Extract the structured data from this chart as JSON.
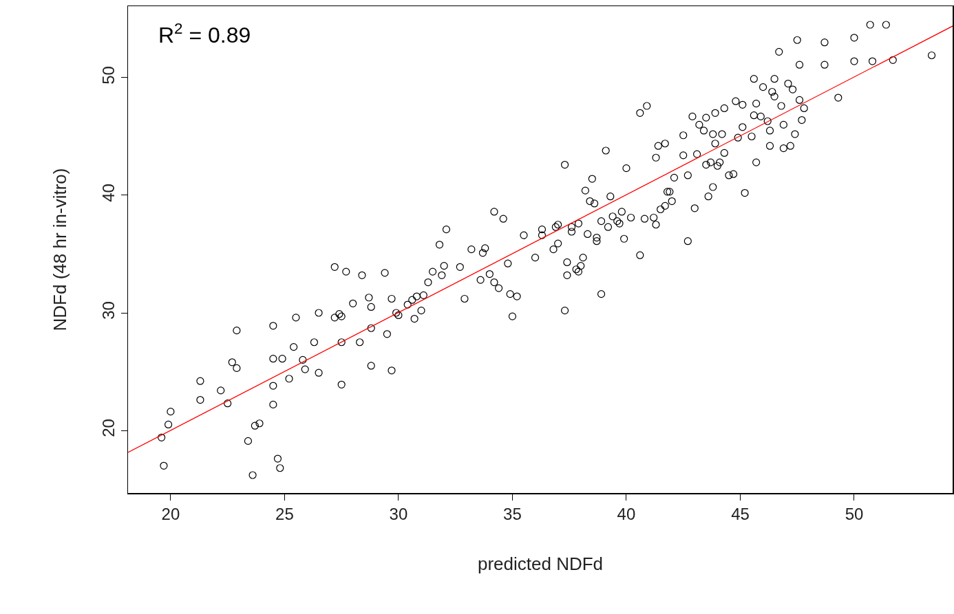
{
  "chart_data": {
    "type": "scatter",
    "xlabel": "predicted NDFd",
    "ylabel": "NDFd (48 hr in-vitro)",
    "annotations": [
      "R$^{2}$ = 0.89"
    ],
    "xlim": [
      18.13,
      54.32
    ],
    "ylim": [
      14.68,
      56.08
    ],
    "xticks": [
      20,
      25,
      30,
      35,
      40,
      45,
      50
    ],
    "yticks": [
      20,
      30,
      40,
      50
    ],
    "legend": false,
    "grid": false,
    "series": [
      {
        "color": "#000000",
        "marker": "circle",
        "x": [
          19.6,
          19.7,
          19.9,
          20.0,
          21.3,
          21.3,
          22.2,
          22.5,
          22.7,
          22.9,
          22.9,
          23.4,
          23.6,
          23.7,
          23.9,
          24.5,
          24.5,
          24.5,
          24.5,
          24.7,
          24.8,
          24.9,
          25.2,
          25.4,
          25.5,
          25.8,
          25.9,
          26.3,
          26.5,
          26.5,
          27.2,
          27.2,
          27.4,
          27.5,
          27.5,
          27.5,
          27.7,
          28.0,
          28.3,
          28.4,
          28.7,
          28.8,
          28.8,
          28.8,
          29.4,
          29.5,
          29.7,
          29.7,
          29.9,
          30.0,
          30.4,
          30.6,
          30.7,
          30.8,
          31.0,
          31.1,
          31.3,
          31.5,
          31.8,
          31.9,
          32.0,
          32.1,
          32.7,
          32.9,
          33.2,
          33.6,
          33.7,
          33.8,
          34.0,
          34.2,
          34.2,
          34.4,
          34.6,
          34.8,
          34.9,
          35.0,
          35.2,
          35.5,
          36.0,
          36.3,
          36.3,
          36.8,
          36.9,
          37.0,
          37.0,
          37.3,
          37.3,
          37.4,
          37.4,
          37.6,
          37.6,
          37.8,
          37.9,
          37.9,
          38.0,
          38.1,
          38.2,
          38.3,
          38.4,
          38.5,
          38.6,
          38.7,
          38.7,
          38.9,
          38.9,
          39.1,
          39.2,
          39.3,
          39.4,
          39.6,
          39.7,
          39.8,
          39.9,
          40.0,
          40.2,
          40.6,
          40.6,
          40.8,
          40.9,
          41.2,
          41.3,
          41.3,
          41.4,
          41.5,
          41.7,
          41.7,
          41.8,
          41.9,
          42.0,
          42.1,
          42.5,
          42.5,
          42.7,
          42.7,
          42.9,
          43.0,
          43.1,
          43.2,
          43.4,
          43.5,
          43.5,
          43.6,
          43.7,
          43.8,
          43.8,
          43.9,
          43.9,
          44.0,
          44.1,
          44.2,
          44.3,
          44.3,
          44.5,
          44.7,
          44.8,
          44.9,
          45.1,
          45.1,
          45.2,
          45.5,
          45.6,
          45.6,
          45.7,
          45.7,
          45.9,
          46.0,
          46.2,
          46.3,
          46.3,
          46.4,
          46.5,
          46.5,
          46.7,
          46.8,
          46.9,
          46.9,
          47.1,
          47.2,
          47.3,
          47.4,
          47.5,
          47.6,
          47.6,
          47.7,
          47.8,
          48.7,
          48.7,
          49.3,
          50.0,
          50.0,
          50.7,
          50.8,
          51.4,
          51.7,
          53.4
        ],
        "values": [
          19.4,
          17.0,
          20.5,
          21.6,
          24.2,
          22.6,
          23.4,
          22.3,
          25.8,
          25.3,
          28.5,
          19.1,
          16.2,
          20.4,
          20.6,
          28.9,
          26.1,
          23.8,
          22.2,
          17.6,
          16.8,
          26.1,
          24.4,
          27.1,
          29.6,
          26.0,
          25.2,
          27.5,
          30.0,
          24.9,
          33.9,
          29.6,
          29.9,
          29.7,
          23.9,
          27.5,
          33.5,
          30.8,
          27.5,
          33.2,
          31.3,
          25.5,
          30.5,
          28.7,
          33.4,
          28.2,
          25.1,
          31.2,
          30.0,
          29.8,
          30.7,
          31.1,
          29.5,
          31.4,
          30.2,
          31.5,
          32.6,
          33.5,
          35.8,
          33.2,
          34.0,
          37.1,
          33.9,
          31.2,
          35.4,
          32.8,
          35.1,
          35.5,
          33.3,
          38.6,
          32.6,
          32.1,
          38.0,
          34.2,
          31.6,
          29.7,
          31.4,
          36.6,
          34.7,
          37.1,
          36.6,
          35.4,
          37.3,
          37.5,
          35.9,
          30.2,
          42.6,
          34.3,
          33.2,
          37.3,
          36.9,
          33.7,
          33.5,
          37.6,
          34.0,
          34.7,
          40.4,
          36.7,
          39.5,
          41.4,
          39.3,
          36.4,
          36.1,
          31.6,
          37.8,
          43.8,
          37.3,
          39.9,
          38.2,
          37.8,
          37.6,
          38.6,
          36.3,
          42.3,
          38.1,
          34.9,
          47.0,
          38.0,
          47.6,
          38.1,
          37.5,
          43.2,
          44.2,
          38.8,
          44.4,
          39.1,
          40.3,
          40.3,
          39.5,
          41.5,
          43.4,
          45.1,
          41.7,
          36.1,
          46.7,
          38.9,
          43.5,
          46.0,
          45.5,
          46.6,
          42.6,
          39.9,
          42.8,
          40.7,
          45.2,
          44.4,
          47.0,
          42.5,
          42.8,
          45.2,
          47.4,
          43.6,
          41.7,
          41.8,
          48.0,
          44.9,
          45.8,
          47.7,
          40.2,
          45.0,
          46.8,
          49.9,
          47.8,
          42.8,
          46.7,
          49.2,
          46.3,
          44.2,
          45.5,
          48.8,
          48.4,
          49.9,
          52.2,
          47.6,
          44.0,
          46.0,
          49.5,
          44.2,
          49.0,
          45.2,
          53.2,
          51.1,
          48.1,
          46.4,
          47.4,
          53.0,
          51.1,
          48.3,
          53.4,
          51.4,
          54.5,
          51.4,
          54.5,
          51.5,
          51.9
        ]
      },
      {
        "type": "line",
        "marker": "none",
        "color": "#ff0000",
        "x": [
          18.13,
          54.32
        ],
        "values": [
          18.13,
          54.39
        ]
      }
    ]
  }
}
